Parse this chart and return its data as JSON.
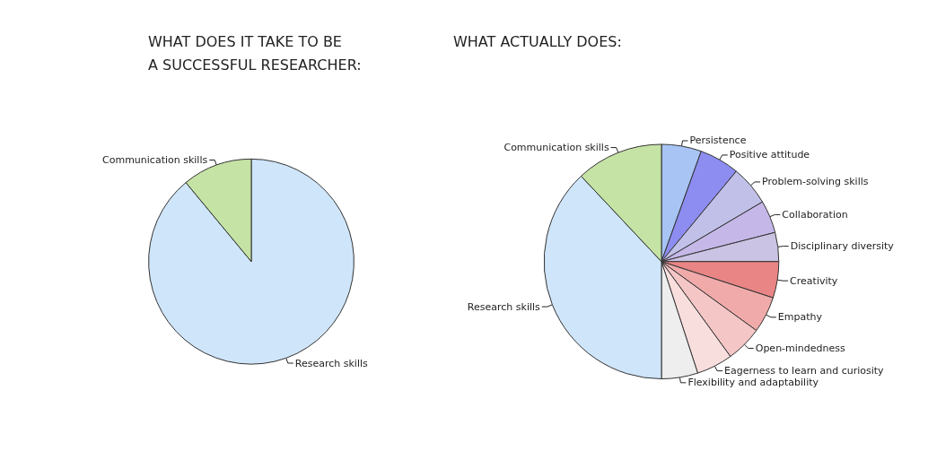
{
  "chart_data": [
    {
      "type": "pie",
      "title": "WHAT DOES IT TAKE TO BE\nA SUCCESSFUL RESEARCHER:",
      "categories": [
        "Research skills",
        "Communication skills"
      ],
      "values": [
        89,
        11
      ],
      "colors": [
        "#cfe5fa",
        "#c5e3a5"
      ]
    },
    {
      "type": "pie",
      "title": "WHAT ACTUALLY DOES:",
      "categories": [
        "Persistence",
        "Positive attitude",
        "Problem-solving skills",
        "Collaboration",
        "Disciplinary diversity",
        "Creativity",
        "Empathy",
        "Open-mindedness",
        "Eagerness to learn and curiosity",
        "Flexibility and adaptability",
        "Research skills",
        "Communication skills"
      ],
      "values": [
        5.5,
        5.5,
        5.5,
        4.5,
        4,
        5,
        5,
        5,
        5,
        5,
        38,
        12
      ],
      "colors": [
        "#a8c4f5",
        "#8d8cf0",
        "#c0c0e8",
        "#c5b8e8",
        "#cbc3e3",
        "#e98585",
        "#f0aaaa",
        "#f5c6c6",
        "#f9dede",
        "#eeeeee",
        "#cfe5fa",
        "#c5e3a5"
      ]
    }
  ]
}
